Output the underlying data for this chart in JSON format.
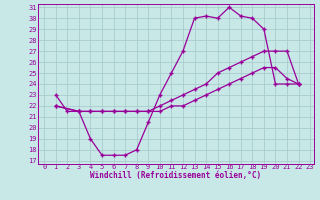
{
  "xlabel": "Windchill (Refroidissement éolien,°C)",
  "bg_color": "#c8e8e8",
  "line_color": "#990099",
  "grid_color": "#aacccc",
  "xlim": [
    -0.5,
    23.3
  ],
  "ylim": [
    16.7,
    31.3
  ],
  "yticks": [
    17,
    18,
    19,
    20,
    21,
    22,
    23,
    24,
    25,
    26,
    27,
    28,
    29,
    30,
    31
  ],
  "xticks": [
    0,
    1,
    2,
    3,
    4,
    5,
    6,
    7,
    8,
    9,
    10,
    11,
    12,
    13,
    14,
    15,
    16,
    17,
    18,
    19,
    20,
    21,
    22,
    23
  ],
  "curve1_x": [
    1,
    2,
    3,
    4,
    5,
    6,
    7,
    8,
    9,
    10,
    11,
    12,
    13,
    14,
    15,
    16,
    17,
    18,
    19,
    20,
    21,
    22
  ],
  "curve1_y": [
    23,
    21.5,
    21.5,
    19,
    17.5,
    17.5,
    17.5,
    18,
    20.5,
    23,
    25,
    27,
    30,
    30.2,
    30,
    31,
    30.2,
    30,
    29,
    24,
    24,
    24
  ],
  "curve2_x": [
    1,
    3,
    4,
    5,
    6,
    7,
    8,
    9,
    10,
    11,
    12,
    13,
    14,
    15,
    16,
    17,
    18,
    19,
    20,
    21,
    22
  ],
  "curve2_y": [
    22,
    21.5,
    21.5,
    21.5,
    21.5,
    21.5,
    21.5,
    21.5,
    22,
    22.5,
    23,
    23.5,
    24,
    25,
    25.5,
    26,
    26.5,
    27,
    27,
    27,
    24
  ],
  "curve3_x": [
    1,
    3,
    4,
    5,
    6,
    7,
    8,
    9,
    10,
    11,
    12,
    13,
    14,
    15,
    16,
    17,
    18,
    19,
    20,
    21,
    22
  ],
  "curve3_y": [
    22,
    21.5,
    21.5,
    21.5,
    21.5,
    21.5,
    21.5,
    21.5,
    21.5,
    22,
    22,
    22.5,
    23,
    23.5,
    24,
    24.5,
    25,
    25.5,
    25.5,
    24.5,
    24
  ]
}
